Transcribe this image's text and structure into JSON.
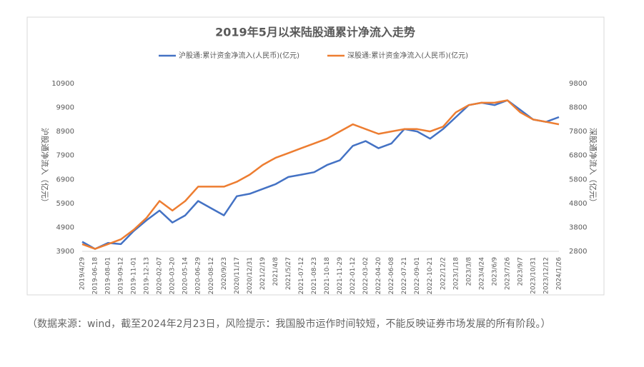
{
  "chart_data": {
    "type": "line",
    "title": "2019年5月以来陆股通累计净流入走势",
    "y_label": "沪股通净流入（亿元）",
    "y2_label": "深股通净流入（亿元）",
    "categories": [
      "2019/4/29",
      "2019-06-18",
      "2019-08-01",
      "2019-09-12",
      "2019-11-01",
      "2019-12-13",
      "2020-02-07",
      "2020-03-20",
      "2020-05-14",
      "2020-06-29",
      "2020-08-12",
      "2020/9/23",
      "2020/11/17",
      "2020/12/31",
      "2021/2/19",
      "2021/4/8",
      "2021/5/27",
      "2021-07-12",
      "2021-08-23",
      "2021-10-18",
      "2021-11-29",
      "2022-01-12",
      "2022-03-02",
      "2022-04-20",
      "2022-06-08",
      "2022-07-21",
      "2022-09-01",
      "2022-10-21",
      "2022/12/2",
      "2023/1/18",
      "2023/3/8",
      "2023/4/24",
      "2023/6/9",
      "2023/7/26",
      "2023/9/7",
      "2023/10/31",
      "2023/12/12",
      "2024/1/26"
    ],
    "series": [
      {
        "name": "沪股通:累计资金净流入(人民币)(亿元)",
        "color": "#4472c4",
        "values": [
          4300,
          4000,
          4250,
          4200,
          4750,
          5200,
          5600,
          5100,
          5400,
          6000,
          5700,
          5400,
          6200,
          6300,
          6500,
          6700,
          7000,
          7100,
          7200,
          7500,
          7700,
          8300,
          8500,
          8200,
          8400,
          9000,
          8900,
          8600,
          9000,
          9500,
          10000,
          10100,
          10000,
          10200,
          9800,
          9400,
          9300,
          9500
        ]
      },
      {
        "name": "深股通:累计资金净流入(人民币)(亿元)",
        "color": "#ed7d31",
        "axis": "y2",
        "values": [
          3100,
          2900,
          3100,
          3300,
          3700,
          4200,
          4900,
          4500,
          4900,
          5500,
          5500,
          5500,
          5700,
          6000,
          6400,
          6700,
          6900,
          7100,
          7300,
          7500,
          7800,
          8100,
          7900,
          7700,
          7800,
          7900,
          7900,
          7800,
          8000,
          8600,
          8900,
          9000,
          9000,
          9100,
          8600,
          8300,
          8200,
          8100
        ]
      }
    ],
    "ylim": [
      3900,
      10900
    ],
    "yticks": [
      3900,
      4900,
      5900,
      6900,
      7900,
      8900,
      9900,
      10900
    ],
    "y2lim": [
      2800,
      9800
    ],
    "y2ticks": [
      2800,
      3800,
      4800,
      5800,
      6800,
      7800,
      8800,
      9800
    ],
    "legend": "top"
  },
  "note": "（数据来源：wind，截至2024年2月23日，风险提示：我国股市运作时间较短，不能反映证券市场发展的所有阶段。）"
}
